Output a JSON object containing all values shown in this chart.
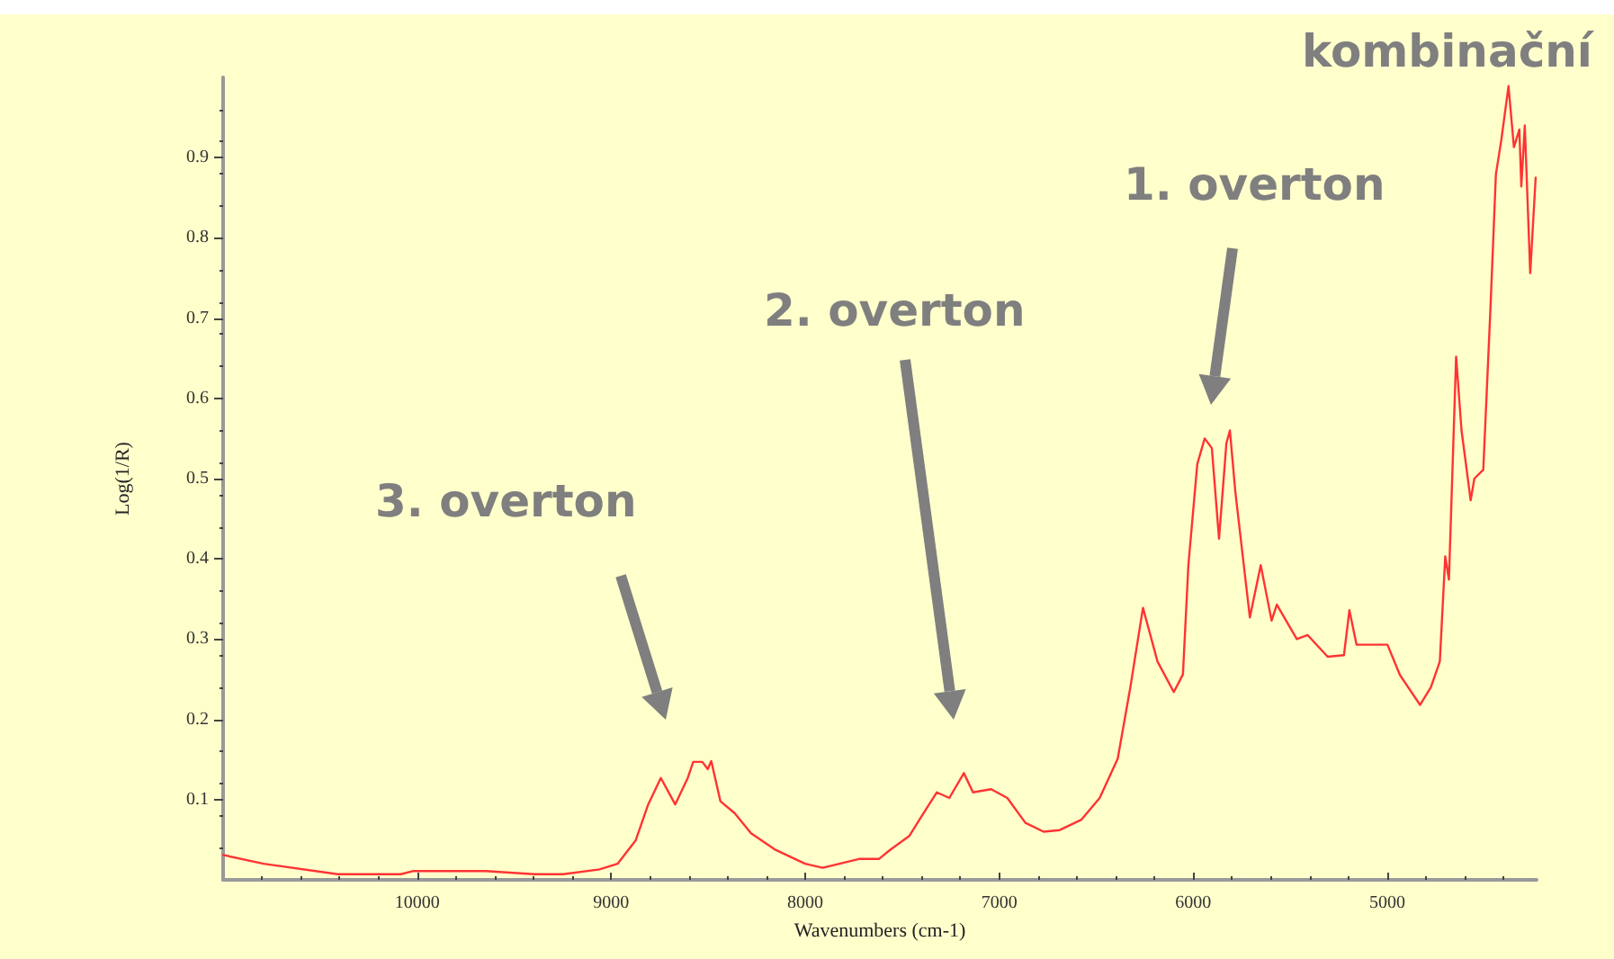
{
  "chart_data": {
    "type": "line",
    "xlabel": "Wavenumbers (cm-1)",
    "ylabel": "Log(1/R)",
    "xlim": [
      11000,
      4230
    ],
    "xticks": [
      10000,
      9000,
      8000,
      7000,
      6000,
      5000
    ],
    "ylim": [
      0,
      1
    ],
    "yticks": [
      0.1,
      0.2,
      0.3,
      0.4,
      0.5,
      0.6,
      0.7,
      0.8,
      0.9
    ],
    "grid": false,
    "marker": "none",
    "line_style": "solid",
    "annotations": [
      "3. overton",
      "2. overton",
      "1. overton",
      "kombinační"
    ],
    "series": [
      {
        "color": "#ff3333",
        "x": [
          11000,
          10791,
          10409,
          10084,
          10019,
          9647,
          9395,
          9247,
          9060,
          8967,
          8874,
          8809,
          8744,
          8670,
          8605,
          8577,
          8530,
          8502,
          8484,
          8437,
          8363,
          8279,
          8158,
          8000,
          7910,
          7723,
          7620,
          7564,
          7462,
          7406,
          7322,
          7257,
          7182,
          7135,
          7042,
          6958,
          6865,
          6771,
          6688,
          6576,
          6482,
          6389,
          6324,
          6259,
          6184,
          6100,
          6053,
          6025,
          5979,
          5941,
          5904,
          5867,
          5829,
          5811,
          5783,
          5755,
          5708,
          5652,
          5596,
          5569,
          5466,
          5410,
          5307,
          5223,
          5195,
          5158,
          5055,
          4999,
          4934,
          4831,
          4775,
          4729,
          4701,
          4682,
          4645,
          4617,
          4570,
          4551,
          4505,
          4468,
          4440,
          4412,
          4375,
          4347,
          4319,
          4309,
          4291,
          4263,
          4235
        ],
        "values": [
          0.031,
          0.02,
          0.007,
          0.007,
          0.011,
          0.011,
          0.007,
          0.007,
          0.013,
          0.02,
          0.049,
          0.094,
          0.127,
          0.094,
          0.127,
          0.147,
          0.147,
          0.138,
          0.148,
          0.098,
          0.083,
          0.058,
          0.038,
          0.02,
          0.015,
          0.026,
          0.026,
          0.037,
          0.055,
          0.077,
          0.109,
          0.102,
          0.133,
          0.109,
          0.113,
          0.102,
          0.071,
          0.06,
          0.062,
          0.075,
          0.102,
          0.151,
          0.24,
          0.339,
          0.272,
          0.234,
          0.256,
          0.392,
          0.518,
          0.55,
          0.538,
          0.425,
          0.544,
          0.56,
          0.484,
          0.425,
          0.327,
          0.392,
          0.323,
          0.343,
          0.3,
          0.305,
          0.278,
          0.28,
          0.336,
          0.293,
          0.293,
          0.293,
          0.255,
          0.218,
          0.24,
          0.272,
          0.403,
          0.374,
          0.652,
          0.56,
          0.473,
          0.5,
          0.511,
          0.712,
          0.879,
          0.922,
          0.989,
          0.913,
          0.935,
          0.864,
          0.94,
          0.756,
          0.875
        ]
      }
    ]
  }
}
